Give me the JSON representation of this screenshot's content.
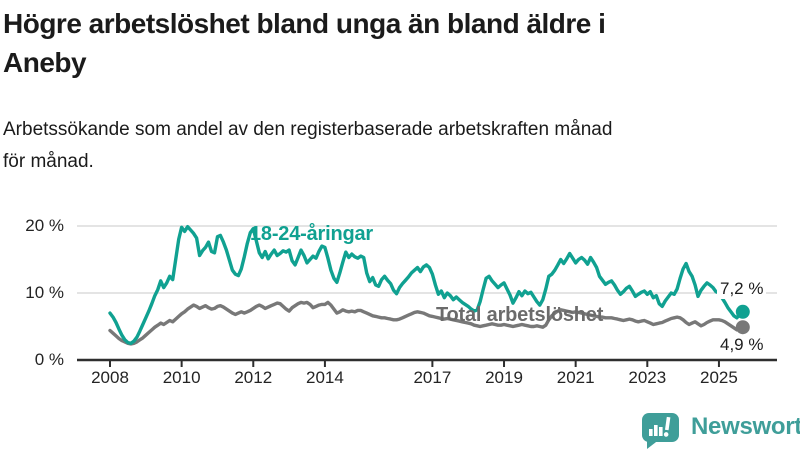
{
  "header": {
    "title": "Högre arbetslöshet bland unga än bland äldre i\nAneby",
    "subtitle": "Arbetssökande som andel av den registerbaserade arbetskraften månad\nför månad."
  },
  "footer": {
    "brand": "Newsworthy"
  },
  "colors": {
    "young_series": "#10a191",
    "total_series": "#787878",
    "total_label": "#6b6b6b",
    "axis": "#2e2e2e",
    "gridline": "#dcdcdc",
    "text": "#1b1b1b",
    "logo_teal": "#3f9e99"
  },
  "chart_data": {
    "type": "line",
    "title": "Högre arbetslöshet bland unga än bland äldre i Aneby",
    "subtitle": "Arbetssökande som andel av den registerbaserade arbetskraften månad för månad.",
    "unit": "%",
    "x_start_year": 2008,
    "x_step_months": 1,
    "x_ticks": [
      2008,
      2010,
      2012,
      2014,
      2017,
      2019,
      2021,
      2023,
      2025
    ],
    "y_ticks": [
      {
        "value": 0,
        "label": "0 %"
      },
      {
        "value": 10,
        "label": "10 %"
      },
      {
        "value": 20,
        "label": "20 %"
      }
    ],
    "ylim": [
      0,
      22
    ],
    "grid": "horizontal",
    "series": [
      {
        "name": "18-24-åringar",
        "color": "#10a191",
        "end_label": "7,2 %",
        "values": [
          7.0,
          6.4,
          5.6,
          4.6,
          3.7,
          3.0,
          2.6,
          2.5,
          2.8,
          3.4,
          4.3,
          5.3,
          6.3,
          7.3,
          8.4,
          9.6,
          10.5,
          11.8,
          10.8,
          11.5,
          12.5,
          12.0,
          15.0,
          18.0,
          19.8,
          19.2,
          19.9,
          19.4,
          18.9,
          18.2,
          15.6,
          16.3,
          16.8,
          17.6,
          16.2,
          16.0,
          18.4,
          18.6,
          17.6,
          16.4,
          14.9,
          13.4,
          12.8,
          12.6,
          13.6,
          15.4,
          17.4,
          19.0,
          19.6,
          17.8,
          16.0,
          15.3,
          16.2,
          15.1,
          15.8,
          16.4,
          15.6,
          15.9,
          16.3,
          16.1,
          16.4,
          14.8,
          14.2,
          15.3,
          16.4,
          15.6,
          14.5,
          15.0,
          15.5,
          15.2,
          16.2,
          17.0,
          16.8,
          15.2,
          13.4,
          12.2,
          11.6,
          13.0,
          14.6,
          16.1,
          15.3,
          15.8,
          15.4,
          15.2,
          15.5,
          15.3,
          13.0,
          11.7,
          12.3,
          11.2,
          11.0,
          12.0,
          12.5,
          11.9,
          11.4,
          10.4,
          9.9,
          10.8,
          11.4,
          11.9,
          12.4,
          13.0,
          13.4,
          13.8,
          13.2,
          13.9,
          14.2,
          13.8,
          12.8,
          11.2,
          9.8,
          10.3,
          9.3,
          10.0,
          9.6,
          9.0,
          9.4,
          9.0,
          8.6,
          8.3,
          8.0,
          7.6,
          7.3,
          7.5,
          8.7,
          10.5,
          12.2,
          12.5,
          11.8,
          11.3,
          10.8,
          11.2,
          11.5,
          10.6,
          9.7,
          8.5,
          9.3,
          10.2,
          9.6,
          10.3,
          9.9,
          10.1,
          9.4,
          8.7,
          8.2,
          9.0,
          10.6,
          12.5,
          12.8,
          13.4,
          14.2,
          15.0,
          14.4,
          15.1,
          15.9,
          15.2,
          14.5,
          15.0,
          15.3,
          14.9,
          14.3,
          15.3,
          14.6,
          13.8,
          12.5,
          11.9,
          11.3,
          11.6,
          11.8,
          11.2,
          10.4,
          9.8,
          10.2,
          10.7,
          11.0,
          10.3,
          9.5,
          9.8,
          10.1,
          10.3,
          9.8,
          10.2,
          9.3,
          9.6,
          8.4,
          8.0,
          8.8,
          9.4,
          10.0,
          9.8,
          10.6,
          12.2,
          13.6,
          14.4,
          13.2,
          12.5,
          11.2,
          9.5,
          10.4,
          11.0,
          11.5,
          11.2,
          10.8,
          10.2,
          10.0,
          9.3,
          8.6,
          7.8,
          7.2,
          6.6,
          6.3,
          6.8,
          7.2
        ]
      },
      {
        "name": "Total arbetslöshet",
        "color": "#787878",
        "end_label": "4,9 %",
        "values": [
          4.4,
          4.0,
          3.6,
          3.2,
          2.9,
          2.7,
          2.5,
          2.4,
          2.5,
          2.7,
          3.0,
          3.3,
          3.7,
          4.1,
          4.5,
          4.9,
          5.2,
          5.5,
          5.3,
          5.6,
          5.9,
          5.7,
          6.1,
          6.5,
          6.9,
          7.2,
          7.6,
          7.9,
          8.2,
          8.0,
          7.7,
          7.9,
          8.1,
          7.8,
          7.6,
          7.7,
          8.0,
          8.1,
          7.9,
          7.6,
          7.3,
          7.0,
          6.8,
          7.0,
          7.2,
          7.0,
          7.2,
          7.4,
          7.7,
          8.0,
          8.2,
          8.0,
          7.7,
          7.9,
          8.1,
          8.3,
          8.5,
          8.4,
          8.0,
          7.6,
          7.3,
          7.8,
          8.1,
          8.4,
          8.6,
          8.5,
          8.6,
          8.3,
          7.8,
          8.0,
          8.2,
          8.3,
          8.3,
          8.6,
          8.2,
          7.6,
          7.0,
          7.2,
          7.5,
          7.3,
          7.2,
          7.3,
          7.2,
          7.4,
          7.4,
          7.2,
          7.0,
          6.8,
          6.6,
          6.5,
          6.4,
          6.3,
          6.3,
          6.2,
          6.1,
          6.0,
          6.0,
          6.1,
          6.3,
          6.5,
          6.7,
          6.9,
          7.1,
          7.2,
          7.1,
          7.0,
          6.8,
          6.6,
          6.5,
          6.4,
          6.3,
          6.2,
          6.1,
          6.2,
          6.1,
          6.0,
          5.9,
          5.8,
          5.7,
          5.6,
          5.5,
          5.4,
          5.2,
          5.1,
          5.0,
          5.1,
          5.2,
          5.3,
          5.4,
          5.3,
          5.2,
          5.2,
          5.3,
          5.2,
          5.1,
          5.0,
          5.1,
          5.2,
          5.3,
          5.2,
          5.1,
          5.0,
          5.0,
          5.1,
          5.0,
          4.9,
          5.2,
          6.0,
          6.6,
          7.0,
          7.3,
          7.5,
          7.4,
          7.3,
          7.2,
          7.1,
          7.2,
          7.1,
          7.0,
          6.9,
          6.8,
          6.7,
          6.6,
          6.5,
          6.4,
          6.4,
          6.3,
          6.3,
          6.3,
          6.2,
          6.1,
          6.0,
          5.9,
          6.0,
          6.1,
          6.0,
          5.8,
          5.7,
          5.8,
          5.9,
          5.7,
          5.5,
          5.3,
          5.4,
          5.5,
          5.6,
          5.8,
          6.0,
          6.2,
          6.3,
          6.4,
          6.3,
          6.0,
          5.6,
          5.3,
          5.5,
          5.7,
          5.4,
          5.1,
          5.3,
          5.6,
          5.8,
          6.0,
          6.0,
          6.0,
          5.9,
          5.7,
          5.4,
          5.1,
          4.8,
          4.5,
          4.6,
          4.9
        ]
      }
    ],
    "legend_position": "inline-labels"
  }
}
